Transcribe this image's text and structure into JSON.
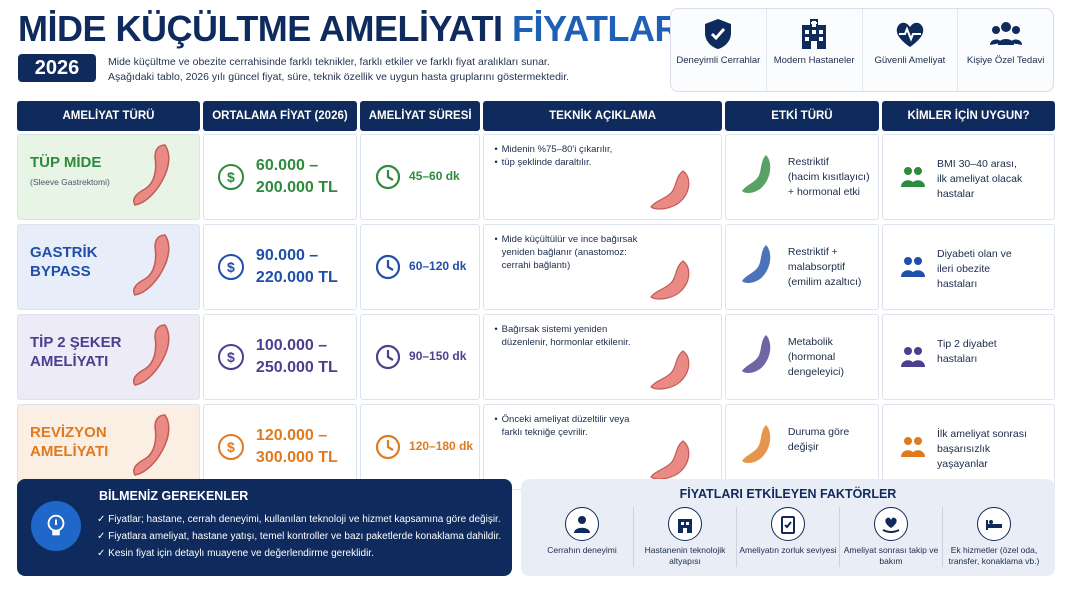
{
  "header": {
    "title_main": "MİDE KÜÇÜLTME AMELİYATI",
    "title_highlight": "FİYATLARI",
    "year": "2026",
    "intro_line1": "Mide küçültme ve obezite cerrahisinde farklı teknikler, farklı etkiler ve farklı fiyat aralıkları sunar.",
    "intro_line2": "Aşağıdaki tablo, 2026 yılı güncel fiyat, süre, teknik özellik ve uygun hasta gruplarını göstermektedir."
  },
  "badges": [
    {
      "icon": "shield-check-icon",
      "label": "Deneyimli Cerrahlar"
    },
    {
      "icon": "hospital-icon",
      "label": "Modern Hastaneler"
    },
    {
      "icon": "heart-pulse-icon",
      "label": "Güvenli Ameliyat"
    },
    {
      "icon": "group-icon",
      "label": "Kişiye Özel Tedavi"
    }
  ],
  "columns": [
    "AMELİYAT TÜRÜ",
    "ORTALAMA FİYAT (2026)",
    "AMELİYAT SÜRESİ",
    "TEKNİK AÇIKLAMA",
    "ETKİ TÜRÜ",
    "KİMLER İÇİN UYGUN?"
  ],
  "rows": [
    {
      "name_line1": "TÜP MİDE",
      "name_line2": "",
      "subtitle": "(Sleeve Gastrektomi)",
      "price_line1": "60.000 –",
      "price_line2": "200.000 TL",
      "duration": "45–60 dk",
      "tech": [
        "Midenin %75–80'i çıkarılır,",
        "tüp şeklinde daraltılır."
      ],
      "effect": [
        "Restriktif",
        "(hacim kısıtlayıcı)",
        "+ hormonal etki"
      ],
      "who": [
        "BMI 30–40 arası,",
        "ilk ameliyat olacak",
        "hastalar"
      ],
      "color": "#2e8b3e",
      "bg": "#e8f4e6"
    },
    {
      "name_line1": "GASTRİK",
      "name_line2": "BYPASS",
      "subtitle": "",
      "price_line1": "90.000 –",
      "price_line2": "220.000 TL",
      "duration": "60–120 dk",
      "tech": [
        "Mide küçültülür ve ince bağırsak yeniden bağlanır (anastomoz: cerrahi bağlantı)"
      ],
      "effect": [
        "Restriktif +",
        "malabsorptif",
        "(emilim azaltıcı)"
      ],
      "who": [
        "Diyabeti olan ve",
        "ileri obezite",
        "hastaları"
      ],
      "color": "#1f4fa8",
      "bg": "#e7eef9"
    },
    {
      "name_line1": "TİP 2 ŞEKER",
      "name_line2": "AMELİYATI",
      "subtitle": "",
      "price_line1": "100.000 –",
      "price_line2": "250.000 TL",
      "duration": "90–150 dk",
      "tech": [
        "Bağırsak sistemi yeniden düzenlenir, hormonlar etkilenir."
      ],
      "effect": [
        "Metabolik",
        "(hormonal",
        "dengeleyici)"
      ],
      "who": [
        "Tip 2 diyabet",
        "hastaları"
      ],
      "color": "#4b3f8f",
      "bg": "#ecebf6"
    },
    {
      "name_line1": "REVİZYON",
      "name_line2": "AMELİYATI",
      "subtitle": "",
      "price_line1": "120.000 –",
      "price_line2": "300.000 TL",
      "duration": "120–180 dk",
      "tech": [
        "Önceki ameliyat düzeltilir veya farklı tekniğe çevrilir."
      ],
      "effect": [
        "Duruma göre",
        "değişir"
      ],
      "who": [
        "İlk ameliyat sonrası",
        "başarısızlık",
        "yaşayanlar"
      ],
      "color": "#e07a1f",
      "bg": "#fbeee3"
    }
  ],
  "know": {
    "title": "BİLMENİZ GEREKENLER",
    "items": [
      "Fiyatlar; hastane, cerrah deneyimi, kullanılan teknoloji ve hizmet kapsamına göre değişir.",
      "Fiyatlara ameliyat, hastane yatışı, temel kontroller ve bazı paketlerde konaklama dahildir.",
      "Kesin fiyat için detaylı muayene ve değerlendirme gereklidir."
    ]
  },
  "factors": {
    "title": "FİYATLARI ETKİLEYEN FAKTÖRLER",
    "items": [
      {
        "icon": "surgeon-icon",
        "label": "Cerrahın deneyimi"
      },
      {
        "icon": "hospital-icon",
        "label": "Hastanenin teknolojik altyapısı"
      },
      {
        "icon": "clipboard-icon",
        "label": "Ameliyatın zorluk seviyesi"
      },
      {
        "icon": "care-heart-icon",
        "label": "Ameliyat sonrası takip ve bakım"
      },
      {
        "icon": "bed-icon",
        "label": "Ek hizmetler (özel oda, transfer, konaklama vb.)"
      }
    ]
  }
}
